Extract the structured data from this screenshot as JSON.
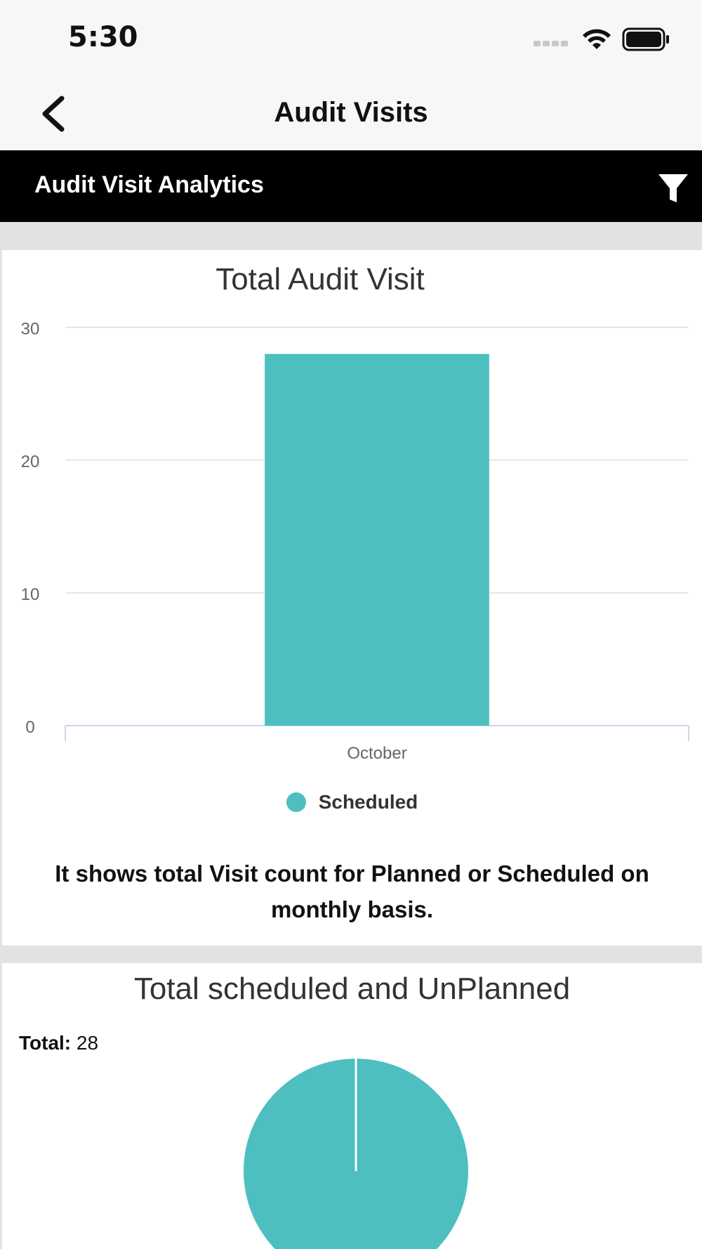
{
  "status_bar": {
    "time": "5:30"
  },
  "nav": {
    "title": "Audit Visits"
  },
  "section": {
    "title": "Audit Visit Analytics"
  },
  "colors": {
    "accent": "#4dbfc0",
    "header_bg": "#000000",
    "page_bg": "#e2e2e2"
  },
  "icons": {
    "back": "chevron-left-icon",
    "filter": "funnel-icon",
    "wifi": "wifi-icon",
    "battery": "battery-icon",
    "signal": "signal-icon"
  },
  "bar_card": {
    "description": "It shows total Visit count for Planned or Scheduled on monthly basis."
  },
  "pie_card": {
    "total_label": "Total:",
    "total_value": "28"
  },
  "chart_data": [
    {
      "type": "bar",
      "title": "Total Audit Visit",
      "categories": [
        "October"
      ],
      "series": [
        {
          "name": "Scheduled",
          "values": [
            28
          ],
          "color": "#4dbfc0"
        }
      ],
      "yticks": [
        0,
        10,
        20,
        30
      ],
      "ylim": [
        0,
        30
      ],
      "grid": true,
      "legend": "bottom"
    },
    {
      "type": "pie",
      "title": "Total scheduled and UnPlanned",
      "slices": [
        {
          "value": 28,
          "color": "#4dbfc0"
        }
      ]
    }
  ]
}
